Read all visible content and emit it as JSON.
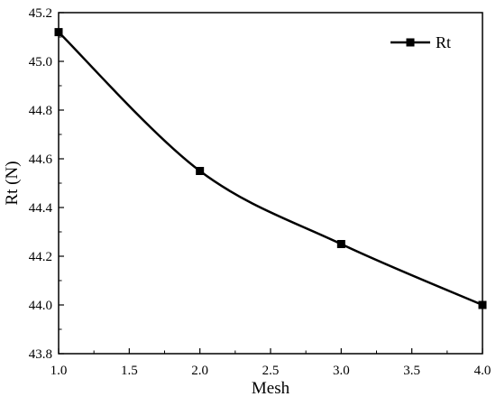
{
  "chart_data": {
    "type": "line",
    "xlabel": "Mesh",
    "ylabel": "Rt (N)",
    "xlim": [
      1.0,
      4.0
    ],
    "ylim": [
      43.8,
      45.2
    ],
    "xticks": [
      "1.0",
      "1.5",
      "2.0",
      "2.5",
      "3.0",
      "3.5",
      "4.0"
    ],
    "yticks": [
      "43.8",
      "44.0",
      "44.2",
      "44.4",
      "44.6",
      "44.8",
      "45.0",
      "45.2"
    ],
    "grid": false,
    "legend_position": "top-right",
    "series": [
      {
        "name": "Rt",
        "color": "#000000",
        "marker": "square",
        "x": [
          1.0,
          2.0,
          3.0,
          4.0
        ],
        "y": [
          45.12,
          44.55,
          44.25,
          44.0
        ]
      }
    ]
  }
}
